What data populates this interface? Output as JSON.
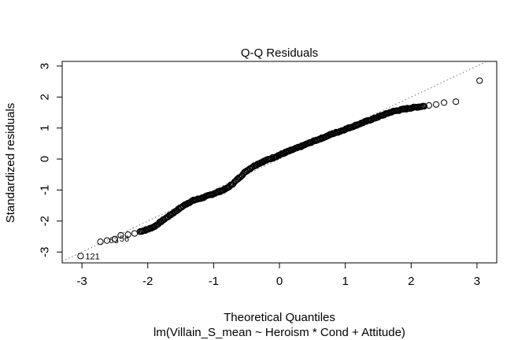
{
  "chart_data": {
    "type": "scatter",
    "title": "Q-Q Residuals",
    "xlabel": "Theoretical Quantiles",
    "ylabel": "Standardized residuals",
    "subtitle": "lm(Villain_S_mean ~ Heroism * Cond + Attitude)",
    "xlim": [
      -3.3,
      3.3
    ],
    "ylim": [
      -3.35,
      3.15
    ],
    "x_ticks": [
      -3,
      -2,
      -1,
      0,
      1,
      2,
      3
    ],
    "y_ticks": [
      -3,
      -2,
      -1,
      0,
      1,
      2,
      3
    ],
    "x_tick_labels": [
      "-3",
      "-2",
      "-1",
      "0",
      "1",
      "2",
      "3"
    ],
    "y_tick_labels": [
      "-3",
      "-2",
      "-1",
      "0",
      "1",
      "2",
      "3"
    ],
    "grid": false,
    "reference_line": {
      "style": "dotted",
      "slope": 1.0,
      "intercept": 0.0
    },
    "point_labels": [
      {
        "text": "121",
        "x": -3.02,
        "y": -3.13
      },
      {
        "text": "63",
        "x": -2.66,
        "y": -2.61
      },
      {
        "text": "56",
        "x": -2.5,
        "y": -2.56
      }
    ],
    "curve_anchors": [
      [
        -3.02,
        -3.13
      ],
      [
        -2.72,
        -2.67
      ],
      [
        -2.6,
        -2.62
      ],
      [
        -2.5,
        -2.58
      ],
      [
        -2.4,
        -2.46
      ],
      [
        -2.3,
        -2.44
      ],
      [
        -2.2,
        -2.4
      ],
      [
        -2.1,
        -2.33
      ],
      [
        -2.0,
        -2.27
      ],
      [
        -1.9,
        -2.18
      ],
      [
        -1.8,
        -2.02
      ],
      [
        -1.7,
        -1.87
      ],
      [
        -1.6,
        -1.72
      ],
      [
        -1.5,
        -1.57
      ],
      [
        -1.4,
        -1.43
      ],
      [
        -1.3,
        -1.33
      ],
      [
        -1.2,
        -1.27
      ],
      [
        -1.1,
        -1.2
      ],
      [
        -1.0,
        -1.12
      ],
      [
        -0.9,
        -1.04
      ],
      [
        -0.8,
        -0.95
      ],
      [
        -0.7,
        -0.78
      ],
      [
        -0.6,
        -0.58
      ],
      [
        -0.5,
        -0.38
      ],
      [
        -0.4,
        -0.24
      ],
      [
        -0.3,
        -0.13
      ],
      [
        -0.2,
        -0.04
      ],
      [
        -0.1,
        0.04
      ],
      [
        0.0,
        0.13
      ],
      [
        0.1,
        0.22
      ],
      [
        0.2,
        0.3
      ],
      [
        0.3,
        0.38
      ],
      [
        0.4,
        0.47
      ],
      [
        0.5,
        0.56
      ],
      [
        0.6,
        0.64
      ],
      [
        0.7,
        0.72
      ],
      [
        0.8,
        0.81
      ],
      [
        0.9,
        0.88
      ],
      [
        1.0,
        0.96
      ],
      [
        1.1,
        1.04
      ],
      [
        1.2,
        1.12
      ],
      [
        1.3,
        1.2
      ],
      [
        1.4,
        1.28
      ],
      [
        1.5,
        1.36
      ],
      [
        1.6,
        1.44
      ],
      [
        1.7,
        1.52
      ],
      [
        1.8,
        1.57
      ],
      [
        1.9,
        1.61
      ],
      [
        2.0,
        1.65
      ],
      [
        2.1,
        1.68
      ],
      [
        2.2,
        1.71
      ],
      [
        2.3,
        1.74
      ],
      [
        2.4,
        1.78
      ],
      [
        2.5,
        1.82
      ],
      [
        2.68,
        1.85
      ],
      [
        3.04,
        2.53
      ]
    ]
  }
}
